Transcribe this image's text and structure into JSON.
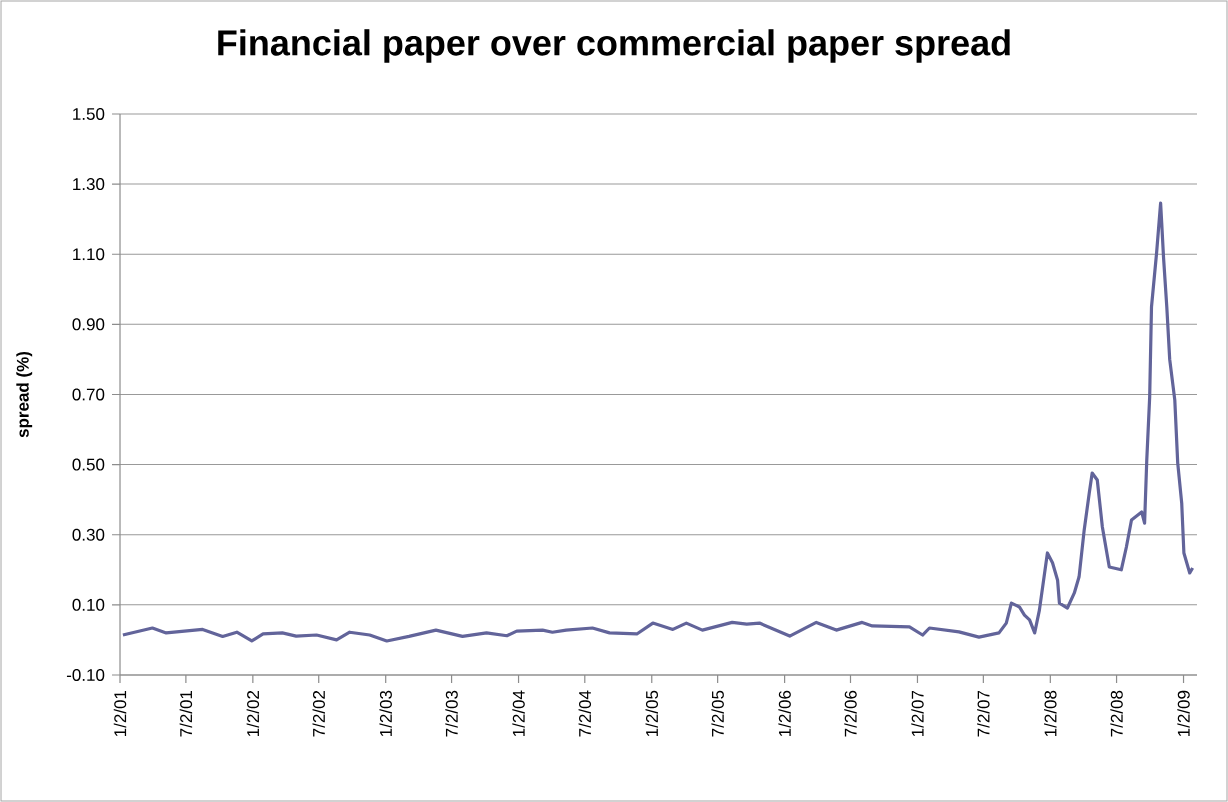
{
  "chart_data": {
    "type": "line",
    "title": "Financial paper over commercial paper spread",
    "ylabel": "spread (%)",
    "x": [
      "2001-01-10",
      "2001-04-01",
      "2001-05-09",
      "2001-08-17",
      "2001-10-11",
      "2001-11-19",
      "2001-12-30",
      "2002-01-30",
      "2002-03-24",
      "2002-05-01",
      "2002-06-26",
      "2002-08-20",
      "2002-09-25",
      "2002-11-19",
      "2003-01-05",
      "2003-03-07",
      "2003-05-20",
      "2003-08-01",
      "2003-10-06",
      "2003-12-01",
      "2003-12-28",
      "2004-03-08",
      "2004-04-04",
      "2004-05-12",
      "2004-07-23",
      "2004-09-08",
      "2004-11-22",
      "2005-01-05",
      "2005-03-01",
      "2005-04-07",
      "2005-05-21",
      "2005-08-11",
      "2005-09-20",
      "2005-10-25",
      "2006-01-16",
      "2006-03-30",
      "2006-05-24",
      "2006-08-03",
      "2006-08-31",
      "2006-12-11",
      "2007-01-16",
      "2007-02-04",
      "2007-04-26",
      "2007-06-20",
      "2007-08-14",
      "2007-09-03",
      "2007-09-17",
      "2007-10-09",
      "2007-10-23",
      "2007-11-06",
      "2007-11-20",
      "2007-12-03",
      "2007-12-25",
      "2008-01-08",
      "2008-01-22",
      "2008-01-27",
      "2008-02-18",
      "2008-03-08",
      "2008-03-21",
      "2008-04-04",
      "2008-04-18",
      "2008-04-26",
      "2008-05-10",
      "2008-05-24",
      "2008-06-12",
      "2008-07-15",
      "2008-07-29",
      "2008-08-12",
      "2008-09-09",
      "2008-09-17",
      "2008-09-23",
      "2008-10-01",
      "2008-10-06",
      "2008-10-20",
      "2008-10-31",
      "2008-11-03",
      "2008-11-08",
      "2008-11-17",
      "2008-11-25",
      "2008-12-09",
      "2008-12-17",
      "2008-12-28",
      "2009-01-03",
      "2009-01-19",
      "2009-01-27"
    ],
    "series": [
      {
        "color": "#62649a",
        "values": [
          0.014,
          0.034,
          0.02,
          0.03,
          0.01,
          0.022,
          -0.003,
          0.017,
          0.02,
          0.011,
          0.014,
          0.0,
          0.022,
          0.014,
          -0.003,
          0.01,
          0.028,
          0.01,
          0.02,
          0.012,
          0.025,
          0.028,
          0.022,
          0.028,
          0.034,
          0.02,
          0.017,
          0.048,
          0.03,
          0.048,
          0.028,
          0.05,
          0.045,
          0.048,
          0.011,
          0.05,
          0.028,
          0.05,
          0.04,
          0.037,
          0.014,
          0.034,
          0.023,
          0.008,
          0.02,
          0.048,
          0.105,
          0.094,
          0.071,
          0.057,
          0.02,
          0.085,
          0.248,
          0.22,
          0.17,
          0.105,
          0.091,
          0.134,
          0.18,
          0.313,
          0.419,
          0.476,
          0.456,
          0.322,
          0.208,
          0.2,
          0.265,
          0.342,
          0.365,
          0.333,
          0.513,
          0.693,
          0.95,
          1.104,
          1.246,
          1.19,
          1.092,
          0.95,
          0.8,
          0.684,
          0.505,
          0.39,
          0.248,
          0.191,
          0.205
        ]
      }
    ],
    "xlim": [
      "2001-01-02",
      "2009-02-08"
    ],
    "xticks": [
      {
        "value": "2001-01-02",
        "label": "1/2/01"
      },
      {
        "value": "2001-07-02",
        "label": "7/2/01"
      },
      {
        "value": "2002-01-02",
        "label": "1/2/02"
      },
      {
        "value": "2002-07-02",
        "label": "7/2/02"
      },
      {
        "value": "2003-01-02",
        "label": "1/2/03"
      },
      {
        "value": "2003-07-02",
        "label": "7/2/03"
      },
      {
        "value": "2004-01-02",
        "label": "1/2/04"
      },
      {
        "value": "2004-07-02",
        "label": "7/2/04"
      },
      {
        "value": "2005-01-02",
        "label": "1/2/05"
      },
      {
        "value": "2005-07-02",
        "label": "7/2/05"
      },
      {
        "value": "2006-01-02",
        "label": "1/2/06"
      },
      {
        "value": "2006-07-02",
        "label": "7/2/06"
      },
      {
        "value": "2007-01-02",
        "label": "1/2/07"
      },
      {
        "value": "2007-07-02",
        "label": "7/2/07"
      },
      {
        "value": "2008-01-02",
        "label": "1/2/08"
      },
      {
        "value": "2008-07-02",
        "label": "7/2/08"
      },
      {
        "value": "2009-01-02",
        "label": "1/2/09"
      }
    ],
    "ylim": [
      -0.1,
      1.5
    ],
    "yticks": [
      {
        "value": -0.1,
        "label": "-0.10"
      },
      {
        "value": 0.1,
        "label": "0.10"
      },
      {
        "value": 0.3,
        "label": "0.30"
      },
      {
        "value": 0.5,
        "label": "0.50"
      },
      {
        "value": 0.7,
        "label": "0.70"
      },
      {
        "value": 0.9,
        "label": "0.90"
      },
      {
        "value": 1.1,
        "label": "1.10"
      },
      {
        "value": 1.3,
        "label": "1.30"
      },
      {
        "value": 1.5,
        "label": "1.50"
      }
    ],
    "grid": "y",
    "line_style": "solid"
  }
}
